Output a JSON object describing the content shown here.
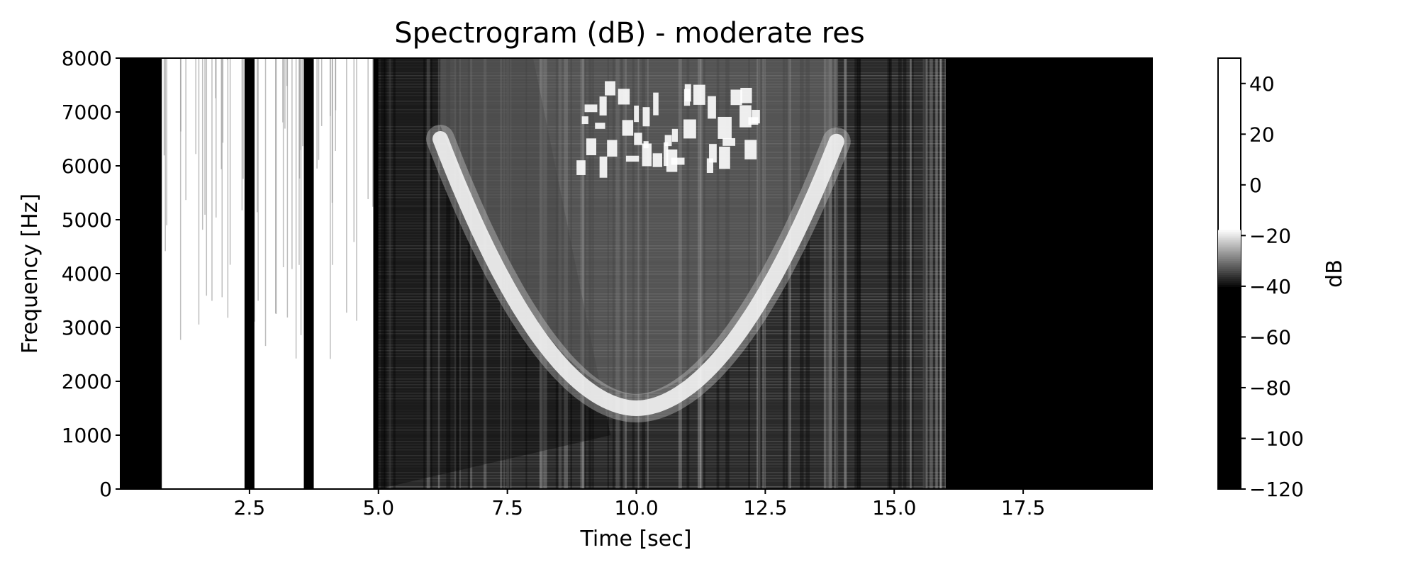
{
  "chart_data": {
    "type": "heatmap",
    "title": "Spectrogram (dB) - moderate res",
    "xlabel": "Time [sec]",
    "ylabel": "Frequency [Hz]",
    "xlim": [
      0,
      20
    ],
    "ylim": [
      0,
      8000
    ],
    "x_ticks": [
      "2.5",
      "5.0",
      "7.5",
      "10.0",
      "12.5",
      "15.0",
      "17.5"
    ],
    "y_ticks": [
      "0",
      "1000",
      "2000",
      "3000",
      "4000",
      "5000",
      "6000",
      "7000",
      "8000"
    ],
    "colorbar": {
      "label": "dB",
      "range": [
        -120,
        50
      ],
      "ticks": [
        "−120",
        "−100",
        "−80",
        "−60",
        "−40",
        "−20",
        "0",
        "20",
        "40"
      ],
      "colormap": "gray"
    },
    "features": [
      {
        "name": "broadband bursts",
        "time_range": [
          0.8,
          4.9
        ],
        "level": "high"
      },
      {
        "name": "silence gaps",
        "times": [
          2.5,
          3.65
        ],
        "level": "low"
      },
      {
        "name": "U-shaped tone sweep",
        "time_range": [
          6.2,
          13.9
        ],
        "min_frequency": 1500,
        "min_time": 10.0,
        "max_frequency": 6500
      },
      {
        "name": "noise floor region",
        "time_range": [
          5.0,
          16.0
        ],
        "level": "mid"
      },
      {
        "name": "silence",
        "time_range": [
          16.0,
          20.0
        ],
        "level": "low"
      }
    ]
  }
}
